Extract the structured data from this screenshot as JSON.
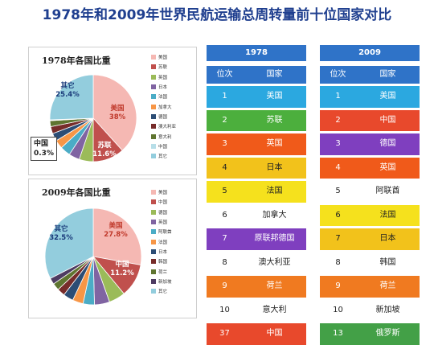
{
  "title": "1978年和2009年世界民航运输总周转量前十位国家对比",
  "colors": {
    "title": "#1f3f8f",
    "header": "#2f73c8",
    "usa": "#2ba8e0",
    "ussr": "#4caf3d",
    "uk": "#f05a1a",
    "japan": "#f2c21b",
    "france": "#f5e11d",
    "china": "#e8492c",
    "germany": "#7f3fbf",
    "netherlands": "#f07a20",
    "russia": "#43a047",
    "white": "#ffffff"
  },
  "chart_data": [
    {
      "type": "pie",
      "title": "1978年各国比重",
      "slices": [
        {
          "label": "美国",
          "value": 38.0,
          "color": "#f5b8b3"
        },
        {
          "label": "苏联",
          "value": 11.6,
          "color": "#c0504d"
        },
        {
          "label": "英国",
          "value": 5.2,
          "color": "#9bbb59"
        },
        {
          "label": "日本",
          "value": 4.0,
          "color": "#8064a2"
        },
        {
          "label": "法国",
          "value": 3.8,
          "color": "#4bacc6"
        },
        {
          "label": "加拿大",
          "value": 3.2,
          "color": "#f79646"
        },
        {
          "label": "德国",
          "value": 2.9,
          "color": "#2c4d75"
        },
        {
          "label": "澳大利亚",
          "value": 2.6,
          "color": "#772c2a"
        },
        {
          "label": "意大利",
          "value": 2.2,
          "color": "#5f7530"
        },
        {
          "label": "中国",
          "value": 0.3,
          "color": "#b7dee8"
        },
        {
          "label": "其它",
          "value": 25.4,
          "color": "#93cddd"
        }
      ],
      "labels": [
        {
          "name": "美国",
          "value": "38%"
        },
        {
          "name": "苏联",
          "value": "11.6%"
        },
        {
          "name": "其它",
          "value": "25.4%"
        }
      ],
      "callout": {
        "name": "中国",
        "value": "0.3%"
      }
    },
    {
      "type": "pie",
      "title": "2009年各国比重",
      "slices": [
        {
          "label": "美国",
          "value": 27.8,
          "color": "#f5b8b3"
        },
        {
          "label": "中国",
          "value": 11.2,
          "color": "#c0504d"
        },
        {
          "label": "德国",
          "value": 5.5,
          "color": "#9bbb59"
        },
        {
          "label": "英国",
          "value": 5.1,
          "color": "#8064a2"
        },
        {
          "label": "阿联酋",
          "value": 3.8,
          "color": "#4bacc6"
        },
        {
          "label": "法国",
          "value": 3.6,
          "color": "#f79646"
        },
        {
          "label": "日本",
          "value": 3.4,
          "color": "#2c4d75"
        },
        {
          "label": "韩国",
          "value": 2.6,
          "color": "#772c2a"
        },
        {
          "label": "荷兰",
          "value": 2.4,
          "color": "#5f7530"
        },
        {
          "label": "新加坡",
          "value": 2.1,
          "color": "#4d3b62"
        },
        {
          "label": "其它",
          "value": 32.5,
          "color": "#93cddd"
        }
      ],
      "labels": [
        {
          "name": "美国",
          "value": "27.8%"
        },
        {
          "name": "中国",
          "value": "11.2%"
        },
        {
          "name": "其它",
          "value": "32.5%"
        }
      ]
    }
  ],
  "tables": {
    "t1978": {
      "year": "1978",
      "col_rank": "位次",
      "col_country": "国家",
      "rows": [
        {
          "rank": "1",
          "country": "美国",
          "color": "#2ba8e0"
        },
        {
          "rank": "2",
          "country": "苏联",
          "color": "#4caf3d"
        },
        {
          "rank": "3",
          "country": "英国",
          "color": "#f05a1a"
        },
        {
          "rank": "4",
          "country": "日本",
          "color": "#f2c21b"
        },
        {
          "rank": "5",
          "country": "法国",
          "color": "#f5e11d"
        },
        {
          "rank": "6",
          "country": "加拿大",
          "color": "#ffffff"
        },
        {
          "rank": "7",
          "country": "原联邦德国",
          "color": "#7f3fbf"
        },
        {
          "rank": "8",
          "country": "澳大利亚",
          "color": "#ffffff"
        },
        {
          "rank": "9",
          "country": "荷兰",
          "color": "#f07a20"
        },
        {
          "rank": "10",
          "country": "意大利",
          "color": "#ffffff"
        },
        {
          "rank": "37",
          "country": "中国",
          "color": "#e8492c"
        }
      ]
    },
    "t2009": {
      "year": "2009",
      "col_rank": "位次",
      "col_country": "国家",
      "rows": [
        {
          "rank": "1",
          "country": "美国",
          "color": "#2ba8e0"
        },
        {
          "rank": "2",
          "country": "中国",
          "color": "#e8492c"
        },
        {
          "rank": "3",
          "country": "德国",
          "color": "#7f3fbf"
        },
        {
          "rank": "4",
          "country": "英国",
          "color": "#f05a1a"
        },
        {
          "rank": "5",
          "country": "阿联酋",
          "color": "#ffffff"
        },
        {
          "rank": "6",
          "country": "法国",
          "color": "#f5e11d"
        },
        {
          "rank": "7",
          "country": "日本",
          "color": "#f2c21b"
        },
        {
          "rank": "8",
          "country": "韩国",
          "color": "#ffffff"
        },
        {
          "rank": "9",
          "country": "荷兰",
          "color": "#f07a20"
        },
        {
          "rank": "10",
          "country": "新加坡",
          "color": "#ffffff"
        },
        {
          "rank": "13",
          "country": "俄罗斯",
          "color": "#43a047"
        }
      ]
    }
  }
}
